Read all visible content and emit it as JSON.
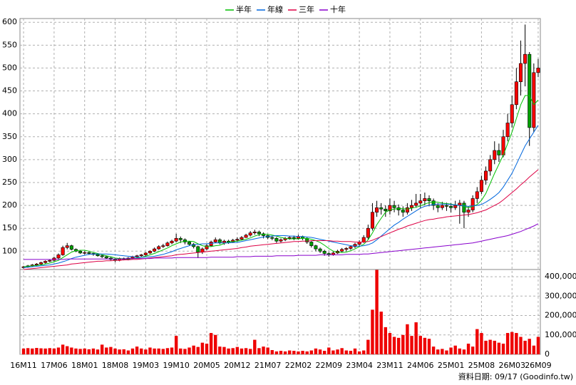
{
  "chart_data": [
    {
      "type": "candlestick",
      "up_color": "#ff0000",
      "down_color": "#00a000",
      "open": [
        64,
        66,
        68,
        70,
        72,
        75,
        78,
        80,
        85,
        92,
        108,
        112,
        104,
        100,
        96,
        97,
        95,
        93,
        90,
        88,
        85,
        82,
        80,
        84,
        82,
        85,
        88,
        90,
        92,
        96,
        100,
        105,
        110,
        112,
        118,
        122,
        128,
        125,
        120,
        115,
        110,
        98,
        105,
        112,
        120,
        125,
        118,
        122,
        120,
        124,
        126,
        130,
        135,
        140,
        142,
        138,
        134,
        130,
        128,
        122,
        125,
        128,
        130,
        128,
        132,
        128,
        120,
        112,
        105,
        100,
        95,
        92,
        96,
        100,
        104,
        106,
        110,
        115,
        120,
        130,
        150,
        185,
        195,
        192,
        188,
        200,
        195,
        190,
        185,
        195,
        200,
        205,
        210,
        215,
        210,
        200,
        195,
        200,
        198,
        195,
        200,
        205,
        185,
        190,
        215,
        230,
        255,
        275,
        300,
        320,
        310,
        350,
        380,
        420,
        470,
        510,
        530,
        370,
        490
      ],
      "high": [
        68,
        70,
        72,
        74,
        77,
        80,
        82,
        88,
        95,
        112,
        118,
        114,
        106,
        102,
        100,
        99,
        97,
        95,
        92,
        90,
        87,
        84,
        86,
        86,
        87,
        90,
        92,
        94,
        98,
        102,
        108,
        113,
        116,
        121,
        125,
        138,
        132,
        128,
        122,
        118,
        112,
        108,
        116,
        123,
        130,
        128,
        125,
        125,
        127,
        130,
        133,
        138,
        144,
        147,
        145,
        141,
        136,
        133,
        131,
        128,
        131,
        133,
        134,
        136,
        134,
        130,
        122,
        114,
        108,
        103,
        98,
        99,
        103,
        107,
        109,
        113,
        118,
        124,
        135,
        158,
        205,
        210,
        205,
        200,
        215,
        210,
        202,
        198,
        205,
        212,
        225,
        225,
        228,
        222,
        215,
        205,
        208,
        206,
        205,
        210,
        212,
        210,
        198,
        222,
        240,
        265,
        285,
        310,
        340,
        335,
        365,
        400,
        440,
        500,
        560,
        595,
        535,
        510,
        520
      ],
      "low": [
        62,
        64,
        66,
        68,
        70,
        73,
        76,
        78,
        83,
        90,
        104,
        102,
        98,
        94,
        93,
        92,
        90,
        88,
        85,
        83,
        80,
        76,
        78,
        80,
        80,
        83,
        86,
        88,
        90,
        94,
        98,
        103,
        107,
        110,
        115,
        120,
        118,
        115,
        112,
        106,
        85,
        94,
        102,
        110,
        118,
        115,
        114,
        116,
        118,
        121,
        124,
        129,
        132,
        136,
        133,
        128,
        126,
        124,
        118,
        119,
        122,
        125,
        124,
        125,
        124,
        116,
        108,
        100,
        96,
        90,
        88,
        90,
        94,
        98,
        100,
        103,
        107,
        112,
        118,
        125,
        145,
        175,
        180,
        175,
        180,
        185,
        178,
        175,
        180,
        188,
        195,
        195,
        200,
        198,
        190,
        185,
        190,
        188,
        185,
        190,
        160,
        150,
        175,
        185,
        205,
        225,
        245,
        265,
        290,
        295,
        305,
        340,
        370,
        410,
        440,
        460,
        330,
        360,
        480
      ],
      "close": [
        66,
        68,
        70,
        72,
        75,
        78,
        80,
        85,
        92,
        108,
        112,
        104,
        100,
        96,
        97,
        95,
        93,
        90,
        88,
        85,
        82,
        80,
        84,
        82,
        85,
        88,
        90,
        92,
        96,
        100,
        105,
        110,
        112,
        118,
        122,
        128,
        125,
        120,
        115,
        110,
        98,
        105,
        112,
        120,
        125,
        118,
        122,
        120,
        124,
        126,
        130,
        135,
        140,
        142,
        138,
        134,
        130,
        128,
        122,
        125,
        128,
        130,
        128,
        132,
        128,
        120,
        112,
        105,
        100,
        95,
        92,
        96,
        100,
        104,
        106,
        110,
        115,
        120,
        130,
        150,
        185,
        195,
        192,
        188,
        200,
        195,
        190,
        185,
        195,
        200,
        205,
        210,
        215,
        210,
        200,
        195,
        200,
        198,
        195,
        200,
        205,
        185,
        190,
        215,
        230,
        255,
        275,
        300,
        320,
        310,
        350,
        380,
        420,
        470,
        510,
        530,
        370,
        490,
        500
      ],
      "series": [
        {
          "name": "半年",
          "color": "#00c000",
          "values": [
            66,
            67,
            68,
            69,
            70,
            72,
            74,
            77,
            80,
            86,
            92,
            98,
            101,
            102,
            102,
            100,
            97,
            95,
            92,
            90,
            88,
            85,
            84,
            83,
            83,
            84,
            85,
            87,
            89,
            92,
            95,
            99,
            103,
            107,
            112,
            116,
            120,
            122,
            122,
            121,
            116,
            112,
            110,
            110,
            112,
            113,
            117,
            120,
            121,
            122,
            124,
            126,
            129,
            133,
            136,
            137,
            137,
            135,
            133,
            130,
            128,
            127,
            127,
            127,
            128,
            128,
            126,
            123,
            119,
            113,
            106,
            100,
            98,
            97,
            98,
            101,
            105,
            110,
            115,
            125,
            140,
            158,
            172,
            185,
            190,
            192,
            193,
            193,
            192,
            194,
            196,
            199,
            203,
            206,
            208,
            207,
            205,
            204,
            203,
            201,
            200,
            198,
            195,
            198,
            202,
            211,
            226,
            248,
            270,
            290,
            310,
            335,
            360,
            390,
            420,
            440,
            440,
            420,
            430
          ]
        },
        {
          "name": "年線",
          "color": "#0066dd",
          "values": [
            64,
            65,
            66,
            67,
            68,
            69,
            70,
            72,
            74,
            77,
            80,
            84,
            87,
            89,
            91,
            93,
            94,
            94,
            94,
            94,
            93,
            92,
            91,
            90,
            89,
            88,
            87,
            87,
            87,
            88,
            89,
            91,
            93,
            96,
            99,
            103,
            106,
            109,
            112,
            114,
            115,
            116,
            116,
            117,
            118,
            118,
            118,
            118,
            119,
            119,
            121,
            123,
            125,
            127,
            129,
            131,
            132,
            133,
            134,
            134,
            134,
            133,
            133,
            132,
            132,
            131,
            130,
            128,
            126,
            124,
            122,
            120,
            118,
            116,
            114,
            112,
            111,
            111,
            112,
            114,
            118,
            125,
            133,
            141,
            149,
            157,
            163,
            170,
            176,
            182,
            188,
            194,
            198,
            200,
            202,
            203,
            203,
            203,
            202,
            201,
            200,
            199,
            198,
            199,
            200,
            202,
            207,
            213,
            220,
            228,
            240,
            255,
            270,
            290,
            310,
            330,
            345,
            360,
            375
          ]
        },
        {
          "name": "三年",
          "color": "#dd0044",
          "values": [
            60,
            61,
            62,
            63,
            64,
            65,
            66,
            67,
            68,
            69,
            70,
            72,
            73,
            74,
            75,
            76,
            77,
            78,
            78,
            79,
            79,
            80,
            80,
            81,
            81,
            82,
            82,
            83,
            84,
            85,
            86,
            87,
            88,
            89,
            90,
            92,
            93,
            94,
            95,
            96,
            97,
            98,
            99,
            100,
            101,
            102,
            103,
            104,
            105,
            106,
            108,
            109,
            111,
            112,
            113,
            114,
            115,
            116,
            117,
            118,
            119,
            120,
            121,
            121,
            122,
            122,
            123,
            123,
            123,
            123,
            123,
            122,
            122,
            121,
            121,
            121,
            120,
            120,
            120,
            121,
            124,
            128,
            132,
            136,
            140,
            144,
            148,
            151,
            155,
            158,
            161,
            164,
            167,
            169,
            170,
            172,
            173,
            175,
            176,
            177,
            178,
            179,
            180,
            182,
            184,
            187,
            190,
            195,
            200,
            205,
            212,
            220,
            228,
            236,
            245,
            253,
            262,
            270,
            278
          ]
        },
        {
          "name": "十年",
          "color": "#8800cc",
          "values": [
            82,
            82,
            82,
            82,
            82,
            82,
            82,
            82,
            82,
            82,
            83,
            83,
            83,
            83,
            83,
            83,
            83,
            83,
            83,
            83,
            83,
            83,
            83,
            83,
            84,
            84,
            84,
            84,
            84,
            84,
            85,
            85,
            85,
            85,
            85,
            86,
            86,
            86,
            86,
            86,
            86,
            86,
            86,
            87,
            87,
            87,
            87,
            87,
            87,
            88,
            88,
            88,
            88,
            89,
            89,
            89,
            89,
            89,
            90,
            90,
            90,
            90,
            90,
            91,
            91,
            91,
            91,
            91,
            92,
            92,
            92,
            92,
            92,
            92,
            93,
            93,
            93,
            93,
            94,
            94,
            95,
            96,
            97,
            98,
            99,
            100,
            101,
            102,
            103,
            104,
            105,
            106,
            107,
            108,
            109,
            110,
            111,
            112,
            113,
            114,
            115,
            116,
            117,
            118,
            120,
            122,
            124,
            126,
            128,
            130,
            132,
            134,
            137,
            140,
            143,
            147,
            151,
            155,
            160
          ]
        }
      ],
      "ylim": [
        60,
        605
      ],
      "yticks": [
        100,
        150,
        200,
        250,
        300,
        350,
        400,
        450,
        500,
        550,
        600
      ],
      "grid": true
    },
    {
      "type": "bar",
      "color": "#ee0000",
      "categories": [
        "16M11",
        null,
        null,
        null,
        null,
        null,
        null,
        "17M06",
        null,
        null,
        null,
        null,
        null,
        null,
        "18M01",
        null,
        null,
        null,
        null,
        null,
        null,
        "18M08",
        null,
        null,
        null,
        null,
        null,
        null,
        "19M03",
        null,
        null,
        null,
        null,
        null,
        null,
        "19M10",
        null,
        null,
        null,
        null,
        null,
        null,
        "20M05",
        null,
        null,
        null,
        null,
        null,
        null,
        "20M12",
        null,
        null,
        null,
        null,
        null,
        null,
        "21M07",
        null,
        null,
        null,
        null,
        null,
        null,
        "22M02",
        null,
        null,
        null,
        null,
        null,
        null,
        "22M09",
        null,
        null,
        null,
        null,
        null,
        null,
        "23M04",
        null,
        null,
        null,
        null,
        null,
        null,
        "23M11",
        null,
        null,
        null,
        null,
        null,
        null,
        "24M06",
        null,
        null,
        null,
        null,
        null,
        null,
        "25M01",
        null,
        null,
        null,
        null,
        null,
        null,
        "25M08",
        null,
        null,
        null,
        null,
        null,
        null,
        "26M03",
        null,
        null,
        null,
        null,
        null,
        "26M09"
      ],
      "values": [
        30000,
        32000,
        30000,
        33000,
        31000,
        30000,
        32000,
        30000,
        35000,
        50000,
        42000,
        35000,
        30000,
        28000,
        30000,
        26000,
        30000,
        25000,
        50000,
        35000,
        38000,
        30000,
        25000,
        26000,
        20000,
        30000,
        40000,
        30000,
        25000,
        35000,
        30000,
        30000,
        28000,
        32000,
        35000,
        95000,
        30000,
        28000,
        35000,
        45000,
        38000,
        60000,
        55000,
        110000,
        100000,
        40000,
        38000,
        30000,
        32000,
        38000,
        30000,
        32000,
        28000,
        75000,
        32000,
        40000,
        35000,
        22000,
        15000,
        18000,
        15000,
        20000,
        18000,
        15000,
        18000,
        15000,
        20000,
        30000,
        25000,
        18000,
        35000,
        20000,
        25000,
        32000,
        20000,
        18000,
        30000,
        15000,
        20000,
        75000,
        230000,
        435000,
        220000,
        140000,
        110000,
        90000,
        85000,
        100000,
        155000,
        95000,
        165000,
        95000,
        85000,
        80000,
        40000,
        25000,
        28000,
        20000,
        35000,
        45000,
        30000,
        25000,
        55000,
        40000,
        130000,
        110000,
        70000,
        75000,
        70000,
        60000,
        55000,
        110000,
        115000,
        110000,
        90000,
        70000,
        80000,
        45000,
        90000
      ],
      "ylim": [
        0,
        437000
      ],
      "yticks": [
        0,
        {
          "value": 100000,
          "label": "100,000"
        },
        {
          "value": 200000,
          "label": "200,000"
        },
        {
          "value": 300000,
          "label": "300,000"
        },
        {
          "value": 400000,
          "label": "400,000"
        }
      ],
      "grid": true,
      "note": "資料日期: 09/17 (Goodinfo.tw)"
    }
  ]
}
